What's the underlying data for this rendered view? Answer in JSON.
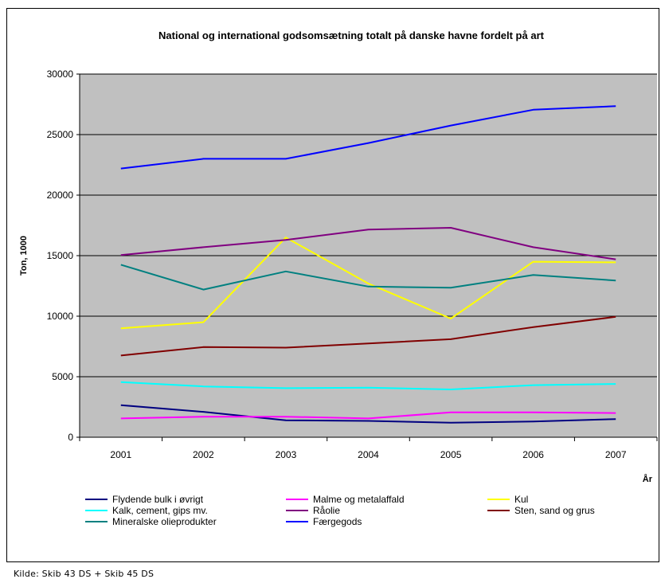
{
  "chart_data": {
    "type": "line",
    "title": "National og international godsomsætning totalt på danske havne fordelt på art",
    "xlabel": "År",
    "ylabel": "Ton, 1000",
    "ylim": [
      0,
      30000
    ],
    "yticks": [
      0,
      5000,
      10000,
      15000,
      20000,
      25000,
      30000
    ],
    "categories": [
      "2001",
      "2002",
      "2003",
      "2004",
      "2005",
      "2006",
      "2007"
    ],
    "grid": true,
    "legend_position": "bottom",
    "plot_background": "#c0c0c0",
    "series": [
      {
        "name": "Flydende bulk i øvrigt",
        "color": "#000080",
        "values": [
          2650,
          2100,
          1400,
          1350,
          1200,
          1300,
          1500
        ]
      },
      {
        "name": "Malme og metalaffald",
        "color": "#ff00ff",
        "values": [
          1550,
          1700,
          1700,
          1550,
          2050,
          2050,
          2000
        ]
      },
      {
        "name": "Kul",
        "color": "#ffff00",
        "values": [
          9000,
          9500,
          16500,
          12700,
          9800,
          14500,
          14450
        ]
      },
      {
        "name": "Kalk, cement, gips mv.",
        "color": "#00ffff",
        "values": [
          4550,
          4200,
          4050,
          4100,
          3950,
          4300,
          4400
        ]
      },
      {
        "name": "Råolie",
        "color": "#800080",
        "values": [
          15050,
          15700,
          16300,
          17150,
          17300,
          15700,
          14700
        ]
      },
      {
        "name": "Sten, sand og grus",
        "color": "#800000",
        "values": [
          6750,
          7450,
          7400,
          7750,
          8100,
          9100,
          9950
        ]
      },
      {
        "name": "Mineralske olieprodukter",
        "color": "#008080",
        "values": [
          14250,
          12200,
          13700,
          12450,
          12350,
          13400,
          12950
        ]
      },
      {
        "name": "Færgegods",
        "color": "#0000ff",
        "values": [
          22200,
          23000,
          23000,
          24300,
          25750,
          27050,
          27350
        ]
      }
    ]
  },
  "source_note": "Kilde: Skib 43 DS + Skib 45 DS"
}
